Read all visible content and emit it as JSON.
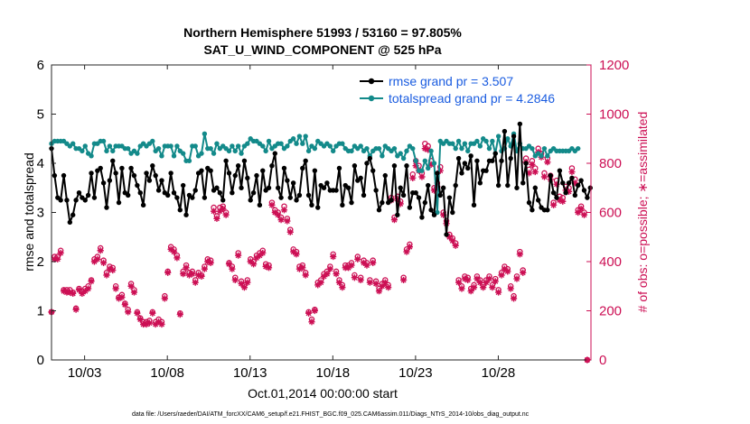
{
  "chart_data": {
    "type": "line",
    "title": "Northern Hemisphere 51993 / 53160 = 97.805%",
    "subtitle": "SAT_U_WIND_COMPONENT @ 525 hPa",
    "xlabel": "Oct.01,2014 00:00:00 start",
    "ylabel_left": "rmse and totalspread",
    "ylabel_right": "# of obs: o=possible; ∗=assimilated",
    "footnote": "data file: /Users/raeder/DAI/ATM_forcXX/CAM6_setup/f.e21.FHIST_BGC.f09_025.CAM6assim.011/Diags_NTrS_2014-10/obs_diag_output.nc",
    "xlim": [
      1,
      33.6
    ],
    "ylim_left": [
      0,
      6
    ],
    "ylim_right": [
      0,
      1200
    ],
    "left_ticks": [
      "0",
      "1",
      "2",
      "3",
      "4",
      "5",
      "6"
    ],
    "right_ticks": [
      "0",
      "200",
      "400",
      "600",
      "800",
      "1000",
      "1200"
    ],
    "x_ticks": [
      {
        "day": 3,
        "label": "10/03"
      },
      {
        "day": 8,
        "label": "10/08"
      },
      {
        "day": 13,
        "label": "10/13"
      },
      {
        "day": 18,
        "label": "10/18"
      },
      {
        "day": 23,
        "label": "10/23"
      },
      {
        "day": 28,
        "label": "10/28"
      }
    ],
    "colors": {
      "rmse": "#000000",
      "spread": "#138a8a",
      "obs": "#cc0f54",
      "legend_text": "#1a5ce0"
    },
    "series": [
      {
        "name": "rmse grand pr = 3.507",
        "key": "rmse",
        "values": [
          4.3,
          3.75,
          3.3,
          3.25,
          3.75,
          3.25,
          2.8,
          2.95,
          3.25,
          3.4,
          3.3,
          3.25,
          3.35,
          3.8,
          3.3,
          3.85,
          3.9,
          3.6,
          3.1,
          3.65,
          4.05,
          3.8,
          3.2,
          3.9,
          3.4,
          3.35,
          3.9,
          3.75,
          3.55,
          3.4,
          3.15,
          3.8,
          3.65,
          3.95,
          3.75,
          3.45,
          3.65,
          3.4,
          3.35,
          3.8,
          3.4,
          3.3,
          3.05,
          3.55,
          2.95,
          3.35,
          3.3,
          3.45,
          3.8,
          3.85,
          3.3,
          3.9,
          3.85,
          3.45,
          3.5,
          3.4,
          3.25,
          4.05,
          3.8,
          3.4,
          3.75,
          3.95,
          3.5,
          4.05,
          3.7,
          3.25,
          3.4,
          3.75,
          3.15,
          3.85,
          3.45,
          3.5,
          3.95,
          4.2,
          3.5,
          3.3,
          3.9,
          3.65,
          3.3,
          3.6,
          3.25,
          3.35,
          3.9,
          4.05,
          3.35,
          3.15,
          3.85,
          3.1,
          3.55,
          3.5,
          3.6,
          3.45,
          3.45,
          3.45,
          3.9,
          3.15,
          3.55,
          3.5,
          3.2,
          3.95,
          3.65,
          3.7,
          3.35,
          4.0,
          4.1,
          3.85,
          3.45,
          3.05,
          3.2,
          3.75,
          3.2,
          3.25,
          3.95,
          2.95,
          3.5,
          3.35,
          3.95,
          3.1,
          3.4,
          3.4,
          3.3,
          2.9,
          3.2,
          3.55,
          3.05,
          2.95,
          3.8,
          3.35,
          3.5,
          2.55,
          3.3,
          3.0,
          3.55,
          4.1,
          3.8,
          4.0,
          3.9,
          4.15,
          3.15,
          4.05,
          3.6,
          3.85,
          3.85,
          4.05,
          4.05,
          4.2,
          3.55,
          4.05,
          4.65,
          3.55,
          4.1,
          4.55,
          3.5,
          4.8,
          3.6,
          4.0,
          3.2,
          3.05,
          3.5,
          3.25,
          3.1,
          3.05,
          3.05,
          3.75,
          3.4,
          3.3,
          3.85,
          3.6,
          3.4,
          3.6,
          3.7,
          3.35,
          3.55,
          3.65,
          3.45,
          3.3,
          3.5
        ]
      },
      {
        "name": "totalspread grand pr = 4.2846",
        "key": "spread",
        "values": [
          4.4,
          4.45,
          4.45,
          4.45,
          4.45,
          4.4,
          4.35,
          4.4,
          4.3,
          4.3,
          4.25,
          4.35,
          4.2,
          4.15,
          4.4,
          4.4,
          4.45,
          4.45,
          4.25,
          4.35,
          4.25,
          4.35,
          4.35,
          4.35,
          4.3,
          4.3,
          4.2,
          4.25,
          4.2,
          4.35,
          4.4,
          4.35,
          4.4,
          4.45,
          4.25,
          4.3,
          4.15,
          4.35,
          4.35,
          4.35,
          4.15,
          4.35,
          4.25,
          4.2,
          4.05,
          4.05,
          4.35,
          4.35,
          4.15,
          4.2,
          4.6,
          4.3,
          4.3,
          4.2,
          4.4,
          4.3,
          4.35,
          4.3,
          4.25,
          4.35,
          4.25,
          4.35,
          4.2,
          4.35,
          4.4,
          4.5,
          4.45,
          4.45,
          4.4,
          4.35,
          4.25,
          4.45,
          4.3,
          4.35,
          4.4,
          4.4,
          4.3,
          4.35,
          4.45,
          4.5,
          4.4,
          4.55,
          4.4,
          4.55,
          4.25,
          4.35,
          4.3,
          4.45,
          4.4,
          4.35,
          4.4,
          4.35,
          4.25,
          4.35,
          4.4,
          4.4,
          4.3,
          4.25,
          4.25,
          4.35,
          4.3,
          4.35,
          4.25,
          4.3,
          4.15,
          4.25,
          4.3,
          4.3,
          4.15,
          4.35,
          4.3,
          4.25,
          4.3,
          4.15,
          4.2,
          4.1,
          4.25,
          4.35,
          4.3,
          4.05,
          3.85,
          3.85,
          4.05,
          3.9,
          4.25,
          4.0,
          3.0,
          4.45,
          4.4,
          4.45,
          4.4,
          4.4,
          4.3,
          4.45,
          4.3,
          4.4,
          4.25,
          4.4,
          4.4,
          4.45,
          4.35,
          4.5,
          4.45,
          4.3,
          4.45,
          4.2,
          4.55,
          4.25,
          4.3,
          4.5,
          4.35,
          4.6,
          4.25,
          4.4,
          4.3,
          4.3,
          4.35,
          4.3,
          4.15,
          4.2,
          4.15,
          4.3,
          4.15,
          4.25,
          4.3,
          4.25,
          4.25,
          4.25,
          4.25,
          4.25,
          4.3,
          4.25,
          4.3
        ]
      },
      {
        "name": "obs possible (o)",
        "key": "obs_possible",
        "values": [
          195,
          420,
          420,
          445,
          285,
          285,
          285,
          275,
          210,
          290,
          280,
          290,
          300,
          325,
          410,
          420,
          455,
          405,
          355,
          380,
          375,
          300,
          255,
          265,
          230,
          205,
          310,
          285,
          195,
          170,
          155,
          155,
          160,
          195,
          155,
          165,
          155,
          260,
          360,
          460,
          450,
          425,
          190,
          360,
          385,
          355,
          360,
          325,
          355,
          345,
          380,
          410,
          405,
          620,
          585,
          620,
          625,
          600,
          395,
          380,
          335,
          435,
          320,
          305,
          325,
          410,
          400,
          425,
          435,
          445,
          390,
          385,
          640,
          610,
          600,
          580,
          625,
          575,
          530,
          450,
          440,
          380,
          385,
          355,
          195,
          165,
          205,
          315,
          325,
          350,
          360,
          380,
          430,
          360,
          325,
          305,
          385,
          385,
          395,
          345,
          420,
          335,
          405,
          395,
          325,
          405,
          320,
          290,
          310,
          325,
          305,
          660,
          580,
          665,
          645,
          335,
          450,
          470,
          755,
          810,
          790,
          760,
          880,
          870,
          810,
          700,
          720,
          785,
          600,
          565,
          510,
          495,
          475,
          325,
          300,
          340,
          335,
          290,
          305,
          340,
          325,
          305,
          325,
          340,
          305,
          330,
          285,
          355,
          380,
          370,
          300,
          260,
          340,
          440,
          365,
          820,
          775,
          810,
          780,
          860,
          840,
          760,
          820,
          750,
          640,
          730,
          665,
          660,
          705,
          700,
          780,
          735,
          610,
          625,
          600,
          0
        ]
      },
      {
        "name": "obs assimilated (∗)",
        "key": "obs_assimilated",
        "values": [
          195,
          410,
          410,
          435,
          280,
          275,
          275,
          270,
          205,
          285,
          270,
          280,
          290,
          320,
          400,
          410,
          445,
          395,
          345,
          370,
          365,
          290,
          250,
          255,
          225,
          195,
          300,
          275,
          190,
          165,
          145,
          145,
          150,
          190,
          145,
          155,
          145,
          250,
          355,
          450,
          440,
          415,
          185,
          350,
          375,
          345,
          350,
          315,
          345,
          340,
          370,
          400,
          395,
          605,
          575,
          605,
          615,
          590,
          390,
          370,
          325,
          425,
          310,
          295,
          315,
          400,
          390,
          415,
          425,
          435,
          380,
          375,
          630,
          600,
          590,
          570,
          610,
          565,
          520,
          440,
          430,
          370,
          375,
          345,
          190,
          155,
          200,
          305,
          315,
          340,
          350,
          370,
          420,
          350,
          315,
          295,
          375,
          375,
          385,
          335,
          410,
          325,
          395,
          385,
          315,
          395,
          310,
          280,
          300,
          315,
          295,
          650,
          570,
          655,
          635,
          325,
          440,
          460,
          740,
          790,
          770,
          745,
          860,
          855,
          795,
          690,
          705,
          770,
          590,
          555,
          500,
          485,
          465,
          315,
          290,
          330,
          325,
          280,
          295,
          330,
          315,
          295,
          315,
          330,
          295,
          320,
          275,
          345,
          370,
          360,
          290,
          250,
          330,
          430,
          355,
          805,
          760,
          795,
          765,
          845,
          825,
          745,
          805,
          735,
          630,
          715,
          650,
          645,
          690,
          685,
          765,
          720,
          600,
          615,
          590,
          0
        ]
      }
    ]
  }
}
